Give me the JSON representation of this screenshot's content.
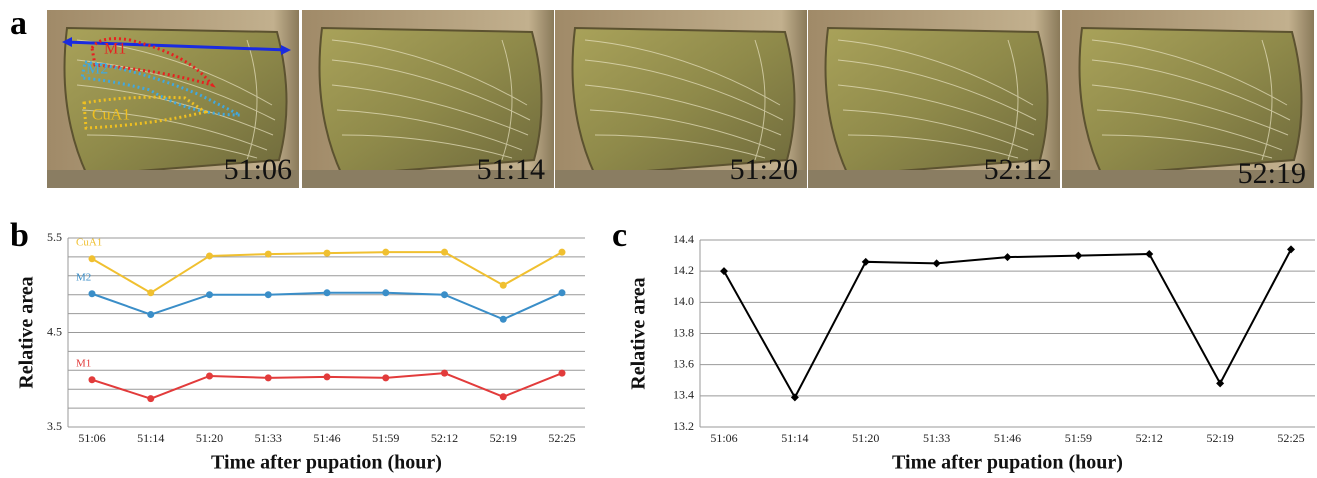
{
  "panel_labels": [
    "a",
    "b",
    "c"
  ],
  "panel_a": {
    "timestamps": [
      "51:06",
      "51:14",
      "51:20",
      "52:12",
      "52:19"
    ],
    "annotations": [
      "M1",
      "M2",
      "CuA1"
    ]
  },
  "chart_data": [
    {
      "type": "line",
      "marker": "circle",
      "ylabel": "Relative area",
      "xlabel": "Time after pupation (hour)",
      "categories": [
        "51:06",
        "51:14",
        "51:20",
        "51:33",
        "51:46",
        "51:59",
        "52:12",
        "52:19",
        "52:25"
      ],
      "series": [
        {
          "name": "CuA1",
          "color": "#f0c030",
          "values": [
            5.28,
            4.92,
            5.31,
            5.33,
            5.34,
            5.35,
            5.35,
            5.0,
            5.35
          ]
        },
        {
          "name": "M2",
          "color": "#3a8ec8",
          "values": [
            4.91,
            4.69,
            4.9,
            4.9,
            4.92,
            4.92,
            4.9,
            4.64,
            4.92
          ]
        },
        {
          "name": "M1",
          "color": "#e23b3b",
          "values": [
            4.0,
            3.8,
            4.04,
            4.02,
            4.03,
            4.02,
            4.07,
            3.82,
            4.07
          ]
        }
      ],
      "ylim": [
        3.5,
        5.5
      ],
      "yticks": [
        3.5,
        4.5,
        5.5
      ],
      "minor_yticks": [
        3.7,
        3.9,
        4.1,
        4.3,
        4.7,
        4.9,
        5.1,
        5.3
      ],
      "grid": true
    },
    {
      "type": "line",
      "marker": "diamond",
      "ylabel": "Relative area",
      "xlabel": "Time after pupation (hour)",
      "categories": [
        "51:06",
        "51:14",
        "51:20",
        "51:33",
        "51:46",
        "51:59",
        "52:12",
        "52:19",
        "52:25"
      ],
      "series": [
        {
          "name": "Relative area",
          "color": "#000000",
          "values": [
            14.2,
            13.39,
            14.26,
            14.25,
            14.29,
            14.3,
            14.31,
            13.48,
            14.34
          ]
        }
      ],
      "ylim": [
        13.2,
        14.4
      ],
      "yticks": [
        13.2,
        13.4,
        13.6,
        13.8,
        {
          "value": 14,
          "label": "14.0"
        },
        14.2,
        14.4
      ],
      "grid": true
    }
  ]
}
